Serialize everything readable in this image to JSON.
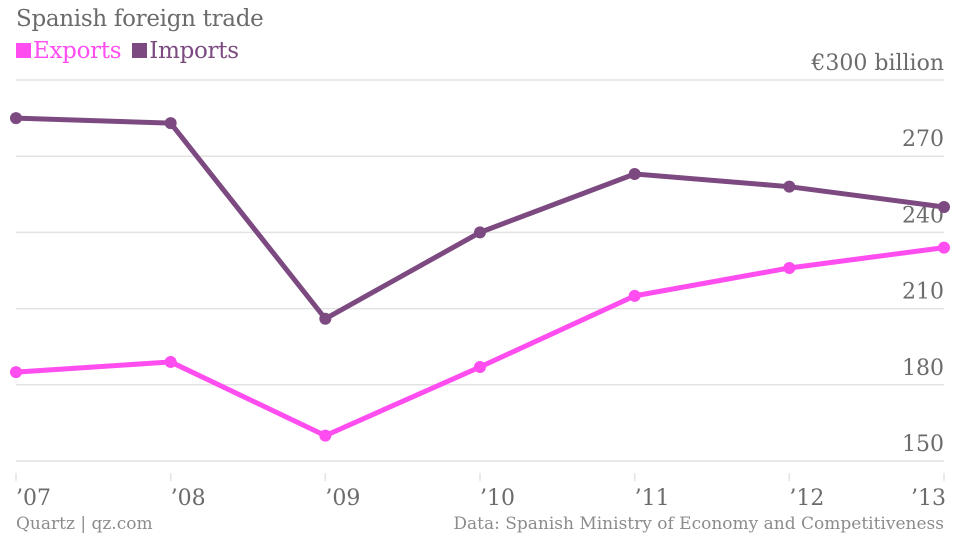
{
  "chart_data": {
    "type": "line",
    "title": "Spanish foreign trade",
    "xlabel": "",
    "ylabel": "",
    "y_unit_label": "€300 billion",
    "categories": [
      "’07",
      "’08",
      "’09",
      "’10",
      "’11",
      "’12",
      "’13"
    ],
    "series": [
      {
        "name": "Exports",
        "color": "#FF4DF0",
        "values": [
          185,
          189,
          160,
          187,
          215,
          226,
          234
        ]
      },
      {
        "name": "Imports",
        "color": "#7C4A80",
        "values": [
          285,
          283,
          206,
          240,
          263,
          258,
          250
        ]
      }
    ],
    "yticks": [
      150,
      180,
      210,
      240,
      270,
      300
    ],
    "ytick_labels": [
      "150",
      "180",
      "210",
      "240",
      "270",
      "€300 billion"
    ],
    "ylim": [
      150,
      300
    ],
    "grid": true,
    "legend_position": "top-left"
  },
  "footer": {
    "source_left": "Quartz | qz.com",
    "source_right": "Data: Spanish Ministry of Economy and Competitiveness"
  },
  "colors": {
    "gridline": "#e3e3e3",
    "text": "#6b6b6b"
  }
}
